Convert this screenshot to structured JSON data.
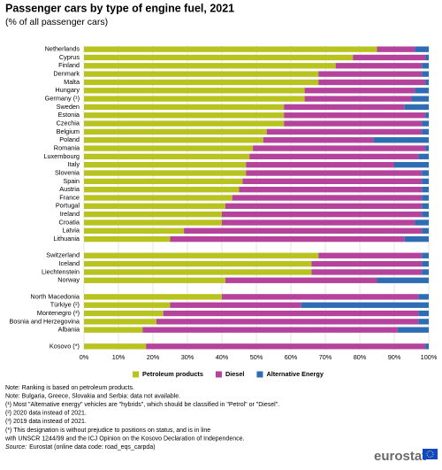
{
  "chart_data": {
    "type": "stacked-barh",
    "title": "Passenger cars by type of engine fuel, 2021",
    "subtitle": "(% of all passenger cars)",
    "categories": [
      "Netherlands",
      "Cyprus",
      "Finland",
      "Denmark",
      "Malta",
      "Hungary",
      "Germany (¹)",
      "Sweden",
      "Estonia",
      "Czechia",
      "Belgium",
      "Poland",
      "Romania",
      "Luxembourg",
      "Italy",
      "Slovenia",
      "Spain",
      "Austria",
      "France",
      "Portugal",
      "Ireland",
      "Croatia",
      "Latvia",
      "Lithuania",
      null,
      "Switzerland",
      "Iceland",
      "Liechtenstein",
      "Norway",
      null,
      "North Macedonia",
      "Türkiye (²)",
      "Montenegro (³)",
      "Bosnia and Herzegovina",
      "Albania",
      null,
      "Kosovo (*)"
    ],
    "series": [
      {
        "name": "Petroleum products",
        "color": "#b9c31f",
        "values": [
          85,
          78,
          73,
          68,
          68,
          64,
          64,
          58,
          58,
          58,
          53,
          52,
          49,
          48,
          47,
          47,
          46,
          45,
          43,
          41,
          40,
          40,
          29,
          25,
          null,
          68,
          66,
          66,
          41,
          null,
          40,
          25,
          23,
          21,
          17,
          null,
          18
        ]
      },
      {
        "name": "Diesel",
        "color": "#b5439b",
        "values": [
          11,
          21,
          25,
          30,
          31,
          32,
          31,
          35,
          41,
          40,
          45,
          32,
          50,
          49,
          43,
          51,
          52,
          53,
          55,
          57,
          58,
          56,
          69,
          68,
          null,
          30,
          32,
          32,
          44,
          null,
          57,
          38,
          74,
          76,
          74,
          null,
          81
        ]
      },
      {
        "name": "Alternative Energy",
        "color": "#2e6db4",
        "values": [
          4,
          1,
          2,
          2,
          1,
          4,
          5,
          7,
          1,
          2,
          2,
          16,
          1,
          3,
          10,
          2,
          2,
          2,
          2,
          2,
          2,
          4,
          2,
          7,
          null,
          2,
          2,
          2,
          15,
          null,
          3,
          37,
          3,
          3,
          9,
          null,
          1
        ]
      }
    ],
    "xlim": [
      0,
      100
    ],
    "xticks": [
      {
        "value": 0,
        "label": "0%"
      },
      {
        "value": 10,
        "label": "10%"
      },
      {
        "value": 20,
        "label": "20%"
      },
      {
        "value": 30,
        "label": "30%"
      },
      {
        "value": 40,
        "label": "40%"
      },
      {
        "value": 50,
        "label": "50%"
      },
      {
        "value": 60,
        "label": "60%"
      },
      {
        "value": 70,
        "label": "70%"
      },
      {
        "value": 80,
        "label": "80%"
      },
      {
        "value": 90,
        "label": "90%"
      },
      {
        "value": 100,
        "label": "100%"
      }
    ],
    "grid": true,
    "legend": "bottom",
    "notes": [
      "Note: Ranking is based on petroleum products.",
      "Note: Bulgaria, Greece, Slovakia and Serbia: data not available.",
      "(¹) Most \"Alternative energy\" vehicles are \"hybrids\", which should be classified in \"Petrol\" or \"Diesel\".",
      "(²) 2020 data instead of 2021.",
      "(³) 2019 data instead of 2021.",
      "(*) This designation is without prejudice to positions on status, and is in line",
      "with UNSCR 1244/99 and the ICJ Opinion on the Kosovo Declaration of Independence."
    ],
    "source_label": "Source:",
    "source": "Eurostat (online data code: road_eqs_carpda)",
    "logo": "eurostat"
  }
}
